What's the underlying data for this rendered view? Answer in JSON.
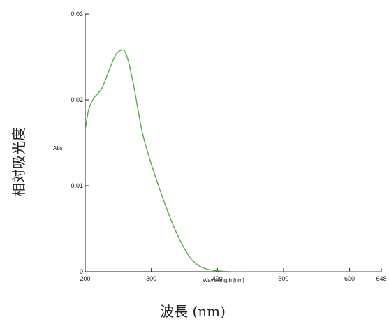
{
  "chart_data": {
    "type": "line",
    "title": "",
    "xlabel_inner": "Wavelength [nm]",
    "ylabel_inner": "Abs",
    "xlabel_outer": "波長 (nm)",
    "ylabel_outer": "相対吸光度",
    "xlim": [
      200,
      648
    ],
    "ylim": [
      0,
      0.03
    ],
    "x_ticks": [
      200,
      300,
      400,
      500,
      600,
      648
    ],
    "y_ticks": [
      0,
      0.01,
      0.02,
      0.03
    ],
    "x_tick_labels": [
      "200",
      "300",
      "400",
      "500",
      "600",
      "648"
    ],
    "y_tick_labels": [
      "0",
      "0.01",
      "0.02",
      "0.03"
    ],
    "grid": false,
    "line_color": "#5aa84a",
    "series": [
      {
        "x": [
          200,
          205,
          210,
          215,
          220,
          225,
          230,
          235,
          240,
          245,
          250,
          255,
          258,
          262,
          266,
          270,
          275,
          280,
          285,
          290,
          295,
          300,
          310,
          320,
          330,
          340,
          350,
          360,
          370,
          380,
          390,
          400,
          420,
          450,
          500,
          550,
          600,
          648
        ],
        "y": [
          0.0165,
          0.0188,
          0.0198,
          0.0204,
          0.0208,
          0.0213,
          0.0222,
          0.0232,
          0.0242,
          0.0251,
          0.0256,
          0.0258,
          0.0258,
          0.0253,
          0.0243,
          0.0229,
          0.021,
          0.0188,
          0.0167,
          0.0151,
          0.0138,
          0.0125,
          0.0102,
          0.008,
          0.006,
          0.0042,
          0.0027,
          0.0015,
          0.0008,
          0.0004,
          0.0002,
          0.0001,
          0.0,
          0.0,
          0.0,
          0.0,
          0.0,
          0.0
        ]
      }
    ]
  }
}
